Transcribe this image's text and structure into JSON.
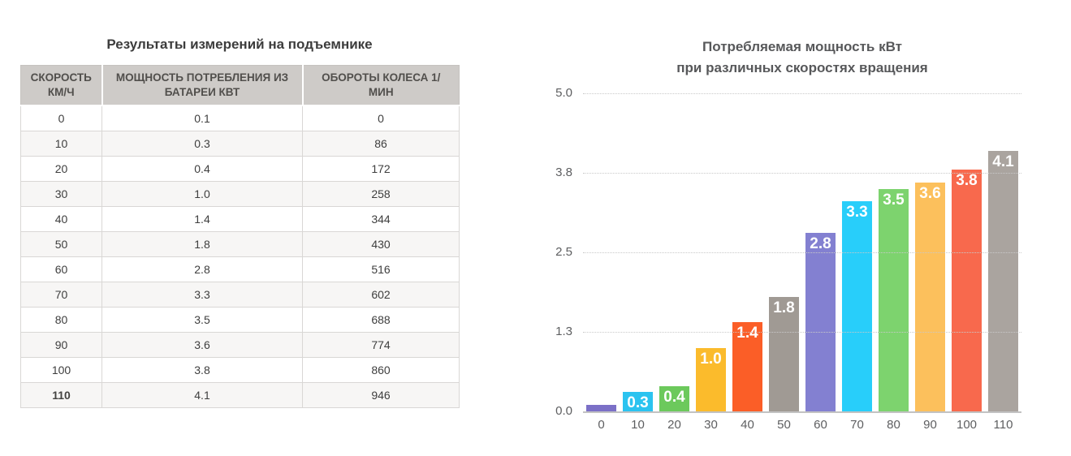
{
  "table_panel": {
    "title": "Результаты измерений на подъемнике",
    "columns": [
      {
        "label": "СКОРОСТЬ КМ/Ч"
      },
      {
        "label": "МОЩНОСТЬ ПОТРЕБЛЕНИЯ ИЗ БАТАРЕИ КВТ"
      },
      {
        "label": "ОБОРОТЫ КОЛЕСА 1/МИН"
      }
    ],
    "rows": [
      {
        "speed": "0",
        "power": "0.1",
        "rpm": "0",
        "highlight": false
      },
      {
        "speed": "10",
        "power": "0.3",
        "rpm": "86",
        "highlight": false
      },
      {
        "speed": "20",
        "power": "0.4",
        "rpm": "172",
        "highlight": false
      },
      {
        "speed": "30",
        "power": "1.0",
        "rpm": "258",
        "highlight": false
      },
      {
        "speed": "40",
        "power": "1.4",
        "rpm": "344",
        "highlight": false
      },
      {
        "speed": "50",
        "power": "1.8",
        "rpm": "430",
        "highlight": false
      },
      {
        "speed": "60",
        "power": "2.8",
        "rpm": "516",
        "highlight": false
      },
      {
        "speed": "70",
        "power": "3.3",
        "rpm": "602",
        "highlight": false
      },
      {
        "speed": "80",
        "power": "3.5",
        "rpm": "688",
        "highlight": false
      },
      {
        "speed": "90",
        "power": "3.6",
        "rpm": "774",
        "highlight": false
      },
      {
        "speed": "100",
        "power": "3.8",
        "rpm": "860",
        "highlight": false
      },
      {
        "speed": "110",
        "power": "4.1",
        "rpm": "946",
        "highlight": true
      }
    ]
  },
  "chart_data": {
    "type": "bar",
    "title": "Потребляемая мощность кВт при различных скоростях вращения",
    "title_lines": [
      "Потребляемая мощность кВт",
      "при различных скоростях вращения"
    ],
    "xlabel": "",
    "ylabel": "",
    "categories": [
      "0",
      "10",
      "20",
      "30",
      "40",
      "50",
      "60",
      "70",
      "80",
      "90",
      "100",
      "110"
    ],
    "values": [
      0.1,
      0.3,
      0.4,
      1.0,
      1.4,
      1.8,
      2.8,
      3.3,
      3.5,
      3.6,
      3.8,
      4.1
    ],
    "bar_labels": [
      "",
      "0.3",
      "0.4",
      "1.0",
      "1.4",
      "1.8",
      "2.8",
      "3.3",
      "3.5",
      "3.6",
      "3.8",
      "4.1"
    ],
    "bar_colors": [
      "#7b70c7",
      "#2bc3f0",
      "#6cc95c",
      "#fbbb2c",
      "#fb5e27",
      "#a09a94",
      "#8380d1",
      "#28cefa",
      "#7dd36e",
      "#fcc05c",
      "#f8694d",
      "#aaa49f"
    ],
    "y_ticks": [
      "5.0",
      "3.8",
      "2.5",
      "1.3",
      "0.0"
    ],
    "ylim": [
      0,
      5
    ],
    "grid": "horizontal-dotted",
    "legend": "none",
    "label_color": "#ffffff"
  }
}
